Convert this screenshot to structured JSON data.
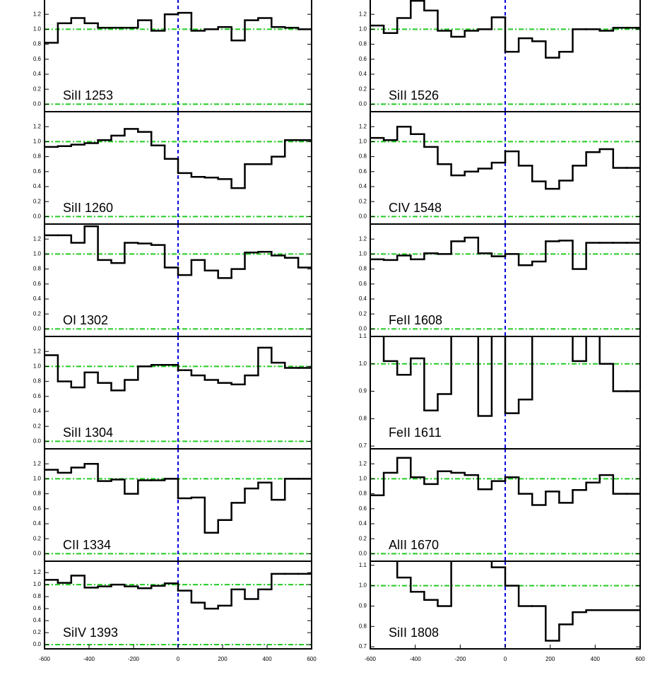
{
  "chart_data": [
    {
      "type": "line",
      "label": "SiII 1253",
      "color": "#000000",
      "ref_color": "#22cc22",
      "zero_color": "#0000dd",
      "ref_y": [
        0,
        1
      ],
      "ref_x": 0,
      "x": [
        -570,
        -510,
        -450,
        -390,
        -330,
        -270,
        -210,
        -150,
        -90,
        -30,
        30,
        90,
        150,
        210,
        270,
        330,
        390,
        450,
        510,
        570
      ],
      "values": [
        0.82,
        1.08,
        1.15,
        1.08,
        1.02,
        1.02,
        1.02,
        1.12,
        0.98,
        1.2,
        1.22,
        0.98,
        1.0,
        1.03,
        0.85,
        1.12,
        1.15,
        1.03,
        1.02,
        1.0
      ],
      "xlim": [
        -600,
        600
      ],
      "ylim": [
        -0.1,
        1.4
      ],
      "yticks": [
        {
          "value": 0,
          "label": "0.0"
        },
        0.2,
        0.4,
        0.6,
        0.8,
        {
          "value": 1,
          "label": "1.0"
        },
        1.2
      ]
    },
    {
      "type": "line",
      "label": "SiII 1260",
      "color": "#000000",
      "ref_color": "#22cc22",
      "zero_color": "#0000dd",
      "ref_y": [
        0,
        1
      ],
      "ref_x": 0,
      "x": [
        -570,
        -510,
        -450,
        -390,
        -330,
        -270,
        -210,
        -150,
        -90,
        -30,
        30,
        90,
        150,
        210,
        270,
        330,
        390,
        450,
        510,
        570
      ],
      "values": [
        0.93,
        0.94,
        0.96,
        0.98,
        1.02,
        1.08,
        1.17,
        1.13,
        0.95,
        0.77,
        0.58,
        0.53,
        0.52,
        0.5,
        0.38,
        0.7,
        0.7,
        0.8,
        1.02,
        1.02
      ],
      "xlim": [
        -600,
        600
      ],
      "ylim": [
        -0.1,
        1.4
      ],
      "yticks": [
        {
          "value": 0,
          "label": "0.0"
        },
        0.2,
        0.4,
        0.6,
        0.8,
        {
          "value": 1,
          "label": "1.0"
        },
        1.2
      ]
    },
    {
      "type": "line",
      "label": "OI 1302",
      "color": "#000000",
      "ref_color": "#22cc22",
      "zero_color": "#0000dd",
      "ref_y": [
        0,
        1
      ],
      "ref_x": 0,
      "x": [
        -570,
        -510,
        -450,
        -390,
        -330,
        -270,
        -210,
        -150,
        -90,
        -30,
        30,
        90,
        150,
        210,
        270,
        330,
        390,
        450,
        510,
        570
      ],
      "values": [
        1.25,
        1.25,
        1.15,
        1.37,
        0.92,
        0.88,
        1.15,
        1.14,
        1.12,
        0.82,
        0.72,
        0.92,
        0.78,
        0.68,
        0.8,
        1.02,
        1.03,
        0.98,
        0.95,
        0.82
      ],
      "xlim": [
        -600,
        600
      ],
      "ylim": [
        -0.1,
        1.4
      ],
      "yticks": [
        {
          "value": 0,
          "label": "0.0"
        },
        0.2,
        0.4,
        0.6,
        0.8,
        {
          "value": 1,
          "label": "1.0"
        },
        1.2
      ]
    },
    {
      "type": "line",
      "label": "SiII 1304",
      "color": "#000000",
      "ref_color": "#22cc22",
      "zero_color": "#0000dd",
      "ref_y": [
        0,
        1
      ],
      "ref_x": 0,
      "x": [
        -570,
        -510,
        -450,
        -390,
        -330,
        -270,
        -210,
        -150,
        -90,
        -30,
        30,
        90,
        150,
        210,
        270,
        330,
        390,
        450,
        510,
        570
      ],
      "values": [
        1.15,
        0.8,
        0.72,
        0.92,
        0.78,
        0.68,
        0.82,
        1.0,
        1.02,
        1.02,
        0.95,
        0.88,
        0.82,
        0.78,
        0.76,
        0.88,
        1.25,
        1.05,
        0.98,
        0.98
      ],
      "xlim": [
        -600,
        600
      ],
      "ylim": [
        -0.1,
        1.4
      ],
      "yticks": [
        {
          "value": 0,
          "label": "0.0"
        },
        0.2,
        0.4,
        0.6,
        0.8,
        {
          "value": 1,
          "label": "1.0"
        },
        1.2
      ]
    },
    {
      "type": "line",
      "label": "CII 1334",
      "color": "#000000",
      "ref_color": "#22cc22",
      "zero_color": "#0000dd",
      "ref_y": [
        0,
        1
      ],
      "ref_x": 0,
      "x": [
        -570,
        -510,
        -450,
        -390,
        -330,
        -270,
        -210,
        -150,
        -90,
        -30,
        30,
        90,
        150,
        210,
        270,
        330,
        390,
        450,
        510,
        570
      ],
      "values": [
        1.12,
        1.08,
        1.15,
        1.2,
        0.97,
        0.99,
        0.8,
        0.98,
        0.98,
        1.0,
        0.74,
        0.75,
        0.28,
        0.45,
        0.68,
        0.87,
        0.95,
        0.72,
        1.0,
        1.0
      ],
      "xlim": [
        -600,
        600
      ],
      "ylim": [
        -0.1,
        1.4
      ],
      "yticks": [
        {
          "value": 0,
          "label": "0.0"
        },
        0.2,
        0.4,
        0.6,
        0.8,
        {
          "value": 1,
          "label": "1.0"
        },
        1.2
      ]
    },
    {
      "type": "line",
      "label": "SiIV 1393",
      "color": "#000000",
      "ref_color": "#22cc22",
      "zero_color": "#0000dd",
      "ref_y": [
        0,
        1
      ],
      "ref_x": 0,
      "x": [
        -570,
        -510,
        -450,
        -390,
        -330,
        -270,
        -210,
        -150,
        -90,
        -30,
        30,
        90,
        150,
        210,
        270,
        330,
        390,
        450,
        510,
        570
      ],
      "values": [
        1.08,
        1.03,
        1.15,
        0.95,
        0.97,
        1.0,
        0.97,
        0.94,
        0.98,
        1.02,
        0.9,
        0.7,
        0.6,
        0.65,
        0.92,
        0.76,
        0.92,
        1.18,
        1.18,
        1.18
      ],
      "xlim": [
        -600,
        600
      ],
      "ylim": [
        -0.07,
        1.39
      ],
      "yticks": [
        {
          "value": 0,
          "label": "0.0"
        },
        0.2,
        0.4,
        0.6,
        0.8,
        {
          "value": 1,
          "label": "1.0"
        },
        1.2
      ],
      "xticks": [
        -600,
        -400,
        -200,
        0,
        200,
        400,
        600
      ]
    },
    {
      "type": "line",
      "label": "SiII 1526",
      "color": "#000000",
      "ref_color": "#22cc22",
      "zero_color": "#0000dd",
      "ref_y": [
        0,
        1
      ],
      "ref_x": 0,
      "x": [
        -570,
        -510,
        -450,
        -390,
        -330,
        -270,
        -210,
        -150,
        -90,
        -30,
        30,
        90,
        150,
        210,
        270,
        330,
        390,
        450,
        510,
        570
      ],
      "values": [
        1.05,
        0.95,
        1.15,
        1.38,
        1.25,
        0.98,
        0.9,
        0.98,
        1.0,
        1.16,
        0.7,
        0.88,
        0.84,
        0.62,
        0.7,
        1.0,
        1.0,
        0.98,
        1.02,
        1.02
      ],
      "xlim": [
        -600,
        600
      ],
      "ylim": [
        -0.1,
        1.4
      ],
      "yticks": [
        {
          "value": 0,
          "label": "0.0"
        },
        0.2,
        0.4,
        0.6,
        0.8,
        {
          "value": 1,
          "label": "1.0"
        },
        1.2
      ]
    },
    {
      "type": "line",
      "label": "CIV 1548",
      "color": "#000000",
      "ref_color": "#22cc22",
      "zero_color": "#0000dd",
      "ref_y": [
        0,
        1
      ],
      "ref_x": 0,
      "x": [
        -570,
        -510,
        -450,
        -390,
        -330,
        -270,
        -210,
        -150,
        -90,
        -30,
        30,
        90,
        150,
        210,
        270,
        330,
        390,
        450,
        510,
        570
      ],
      "values": [
        1.05,
        1.02,
        1.2,
        1.1,
        0.93,
        0.7,
        0.55,
        0.6,
        0.64,
        0.72,
        0.87,
        0.68,
        0.47,
        0.37,
        0.48,
        0.68,
        0.86,
        0.9,
        0.65,
        0.65
      ],
      "xlim": [
        -600,
        600
      ],
      "ylim": [
        -0.1,
        1.4
      ],
      "yticks": [
        {
          "value": 0,
          "label": "0.0"
        },
        0.2,
        0.4,
        0.6,
        0.8,
        {
          "value": 1,
          "label": "1.0"
        },
        1.2
      ]
    },
    {
      "type": "line",
      "label": "FeII 1608",
      "color": "#000000",
      "ref_color": "#22cc22",
      "zero_color": "#0000dd",
      "ref_y": [
        0,
        1
      ],
      "ref_x": 0,
      "x": [
        -570,
        -510,
        -450,
        -390,
        -330,
        -270,
        -210,
        -150,
        -90,
        -30,
        30,
        90,
        150,
        210,
        270,
        330,
        390,
        450,
        510,
        570
      ],
      "values": [
        0.93,
        0.92,
        0.98,
        0.93,
        1.01,
        1.0,
        1.17,
        1.22,
        1.01,
        0.97,
        1.0,
        0.85,
        0.9,
        1.17,
        1.18,
        0.8,
        1.15,
        1.15,
        1.15,
        1.15
      ],
      "xlim": [
        -600,
        600
      ],
      "ylim": [
        -0.1,
        1.4
      ],
      "yticks": [
        {
          "value": 0,
          "label": "0.0"
        },
        0.2,
        0.4,
        0.6,
        0.8,
        {
          "value": 1,
          "label": "1.0"
        },
        1.2
      ]
    },
    {
      "type": "line",
      "label": "FeII 1611",
      "color": "#000000",
      "ref_color": "#22cc22",
      "zero_color": "#0000dd",
      "ref_y": [
        1
      ],
      "ref_x": 0,
      "x": [
        -570,
        -510,
        -450,
        -390,
        -330,
        -270,
        -210,
        -150,
        -90,
        -30,
        30,
        90,
        150,
        210,
        270,
        330,
        390,
        450,
        510,
        570
      ],
      "values": [
        1.12,
        1.01,
        0.96,
        1.02,
        0.83,
        0.89,
        1.12,
        1.12,
        0.81,
        1.12,
        0.82,
        0.87,
        1.12,
        1.12,
        1.12,
        1.01,
        1.12,
        1.0,
        0.9,
        0.9
      ],
      "xlim": [
        -600,
        600
      ],
      "ylim": [
        0.69,
        1.1
      ],
      "yticks": [
        0.7,
        0.8,
        0.9,
        {
          "value": 1,
          "label": "1.0"
        },
        1.1
      ]
    },
    {
      "type": "line",
      "label": "AlII 1670",
      "color": "#000000",
      "ref_color": "#22cc22",
      "zero_color": "#0000dd",
      "ref_y": [
        0,
        1
      ],
      "ref_x": 0,
      "x": [
        -570,
        -510,
        -450,
        -390,
        -330,
        -270,
        -210,
        -150,
        -90,
        -30,
        30,
        90,
        150,
        210,
        270,
        330,
        390,
        450,
        510,
        570
      ],
      "values": [
        0.78,
        1.08,
        1.28,
        1.02,
        0.93,
        1.1,
        1.08,
        1.05,
        0.86,
        0.97,
        1.02,
        0.8,
        0.65,
        0.83,
        0.68,
        0.85,
        0.95,
        1.05,
        0.8,
        0.8
      ],
      "xlim": [
        -600,
        600
      ],
      "ylim": [
        -0.1,
        1.4
      ],
      "yticks": [
        {
          "value": 0,
          "label": "0.0"
        },
        0.2,
        0.4,
        0.6,
        0.8,
        {
          "value": 1,
          "label": "1.0"
        },
        1.2
      ]
    },
    {
      "type": "line",
      "label": "SiII 1808",
      "color": "#000000",
      "ref_color": "#22cc22",
      "zero_color": "#0000dd",
      "ref_y": [
        1
      ],
      "ref_x": 0,
      "x": [
        -570,
        -510,
        -450,
        -390,
        -330,
        -270,
        -210,
        -150,
        -90,
        -30,
        30,
        90,
        150,
        210,
        270,
        330,
        390,
        450,
        510,
        570
      ],
      "values": [
        1.14,
        1.14,
        1.04,
        0.97,
        0.93,
        0.9,
        1.14,
        1.14,
        1.14,
        1.09,
        1.0,
        0.9,
        0.9,
        0.73,
        0.81,
        0.87,
        0.88,
        0.88,
        0.88,
        0.88
      ],
      "xlim": [
        -600,
        600
      ],
      "ylim": [
        0.69,
        1.12
      ],
      "yticks": [
        0.7,
        0.8,
        0.9,
        {
          "value": 1,
          "label": "1.0"
        },
        1.1
      ],
      "xticks": [
        -600,
        -400,
        -200,
        0,
        200,
        400,
        600
      ]
    }
  ]
}
